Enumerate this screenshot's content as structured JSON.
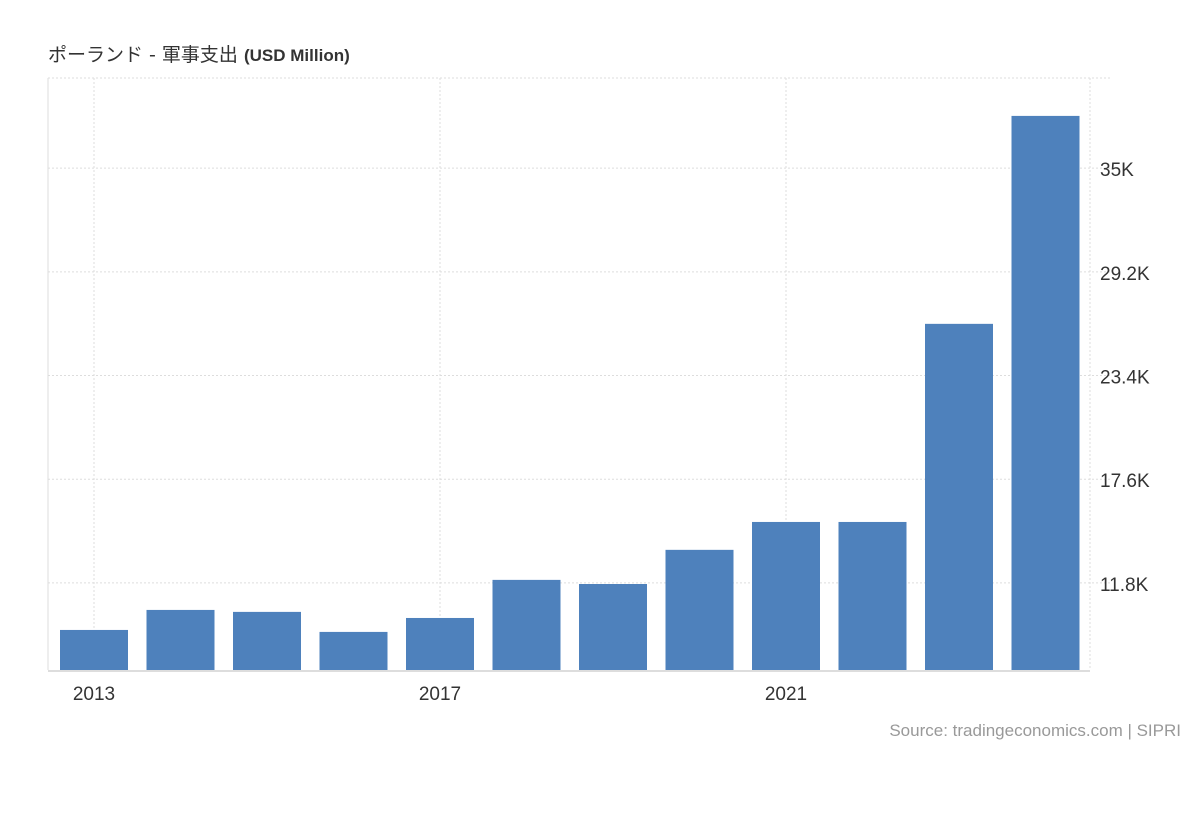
{
  "chart_data": {
    "type": "bar",
    "title": "ポーランド - 軍事支出",
    "title_unit": "(USD Million)",
    "xlabel": "",
    "ylabel": "",
    "categories": [
      "2013",
      "2014",
      "2015",
      "2016",
      "2017",
      "2018",
      "2019",
      "2020",
      "2021",
      "2022",
      "2023",
      "2024"
    ],
    "values": [
      9170,
      10290,
      10180,
      9060,
      9840,
      11970,
      11740,
      13650,
      15210,
      15210,
      26290,
      37920
    ],
    "ylim": [
      6930,
      40040
    ],
    "yticks": [
      11800,
      17600,
      23400,
      29200,
      35000
    ],
    "ytick_labels": [
      "11.8K",
      "17.6K",
      "23.4K",
      "29.2K",
      "35K"
    ],
    "xtick_labels": [
      "2013",
      "2017",
      "2021"
    ],
    "grid": true,
    "bar_color": "#4e81bc",
    "source": "Source: tradingeconomics.com | SIPRI"
  }
}
